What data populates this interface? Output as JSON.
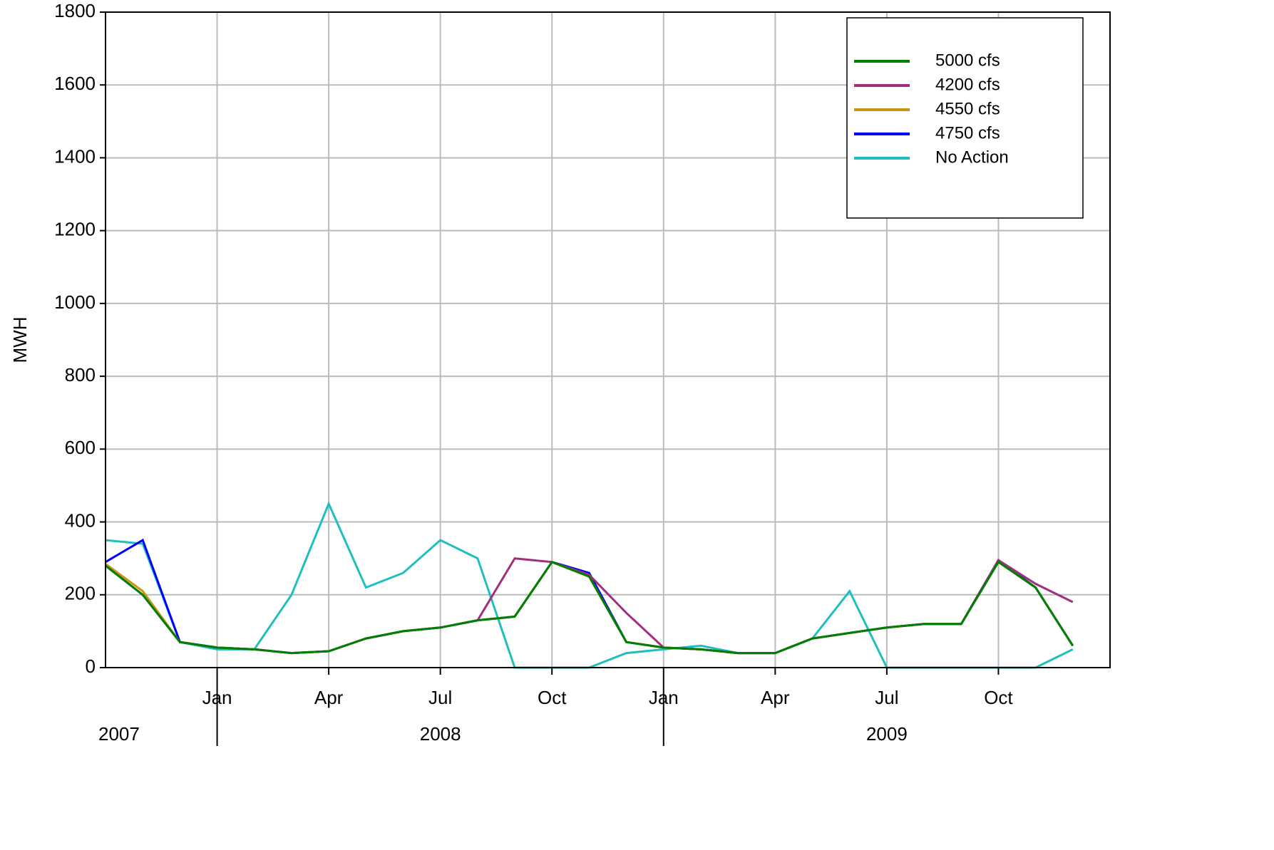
{
  "chart_data": {
    "type": "line",
    "y_label": "MWH",
    "x": [
      "2007-10",
      "2007-11",
      "2007-12",
      "2008-01",
      "2008-02",
      "2008-03",
      "2008-04",
      "2008-05",
      "2008-06",
      "2008-07",
      "2008-08",
      "2008-09",
      "2008-10",
      "2008-11",
      "2008-12",
      "2009-01",
      "2009-02",
      "2009-03",
      "2009-04",
      "2009-05",
      "2009-06",
      "2009-07",
      "2009-08",
      "2009-09",
      "2009-10",
      "2009-11",
      "2009-12"
    ],
    "xlim": [
      "2007-10",
      "2010-01"
    ],
    "xticks": [
      {
        "value": "2008-01",
        "label": "Jan"
      },
      {
        "value": "2008-04",
        "label": "Apr"
      },
      {
        "value": "2008-07",
        "label": "Jul"
      },
      {
        "value": "2008-10",
        "label": "Oct"
      },
      {
        "value": "2009-01",
        "label": "Jan"
      },
      {
        "value": "2009-04",
        "label": "Apr"
      },
      {
        "value": "2009-07",
        "label": "Jul"
      },
      {
        "value": "2009-10",
        "label": "Oct"
      }
    ],
    "years": [
      "2007",
      "2008",
      "2009"
    ],
    "ylim": [
      0,
      1800
    ],
    "yticks": [
      0,
      200,
      400,
      600,
      800,
      1000,
      1200,
      1400,
      1600,
      1800
    ],
    "grid": true,
    "legend": "upper right",
    "series": [
      {
        "name": "No Action",
        "color": "#20bfbf",
        "values": [
          350,
          340,
          70,
          50,
          50,
          200,
          450,
          220,
          260,
          350,
          300,
          0,
          0,
          0,
          40,
          50,
          60,
          40,
          40,
          80,
          210,
          0,
          0,
          0,
          0,
          0,
          50
        ]
      },
      {
        "name": "4750 cfs",
        "color": "#0000ff",
        "values": [
          290,
          350,
          70,
          55,
          50,
          40,
          45,
          80,
          100,
          110,
          130,
          140,
          290,
          260,
          70,
          55,
          50,
          40,
          40,
          80,
          95,
          110,
          120,
          120,
          295,
          220,
          60
        ]
      },
      {
        "name": "4550 cfs",
        "color": "#c8960c",
        "values": [
          285,
          210,
          70,
          55,
          50,
          40,
          45,
          80,
          100,
          110,
          130,
          140,
          290,
          250,
          70,
          55,
          50,
          40,
          40,
          80,
          95,
          110,
          120,
          120,
          290,
          220,
          60
        ]
      },
      {
        "name": "4200 cfs",
        "color": "#a0307f",
        "values": [
          280,
          200,
          70,
          55,
          50,
          40,
          45,
          80,
          100,
          110,
          130,
          300,
          290,
          255,
          150,
          55,
          50,
          40,
          40,
          80,
          95,
          110,
          120,
          120,
          295,
          230,
          180
        ]
      },
      {
        "name": "5000 cfs",
        "color": "#008000",
        "values": [
          280,
          200,
          70,
          55,
          50,
          40,
          45,
          80,
          100,
          110,
          130,
          140,
          290,
          250,
          70,
          55,
          50,
          40,
          40,
          80,
          95,
          110,
          120,
          120,
          290,
          220,
          60
        ]
      }
    ]
  }
}
